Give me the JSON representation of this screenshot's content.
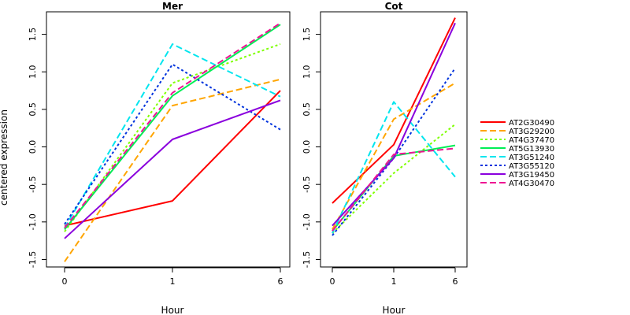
{
  "chart_data": [
    {
      "type": "line",
      "title": "Mer",
      "xlabel": "Hour",
      "ylabel": "centered expression",
      "categories": [
        "0",
        "1",
        "6"
      ],
      "ylim": [
        -1.6,
        1.8
      ],
      "yticks": [
        "-1.5",
        "-1.0",
        "-0.5",
        "0.0",
        "0.5",
        "1.0",
        "1.5"
      ],
      "grid": false,
      "series": [
        {
          "name": "AT2G30490",
          "color": "#ff0000",
          "dash": "solid",
          "values": [
            -1.05,
            -0.72,
            0.75
          ]
        },
        {
          "name": "AT3G29200",
          "color": "#ffa500",
          "dash": "longdash",
          "values": [
            -1.53,
            0.55,
            0.9
          ]
        },
        {
          "name": "AT4G37470",
          "color": "#7fff00",
          "dash": "dotted",
          "values": [
            -1.13,
            0.85,
            1.37
          ]
        },
        {
          "name": "AT5G13930",
          "color": "#00ee55",
          "dash": "solid",
          "values": [
            -1.1,
            0.68,
            1.63
          ]
        },
        {
          "name": "AT3G51240",
          "color": "#00e5ee",
          "dash": "longdash",
          "values": [
            -1.08,
            1.37,
            0.67
          ]
        },
        {
          "name": "AT3G55120",
          "color": "#0033dd",
          "dash": "dotted",
          "values": [
            -1.03,
            1.1,
            0.23
          ]
        },
        {
          "name": "AT3G19450",
          "color": "#8a00dd",
          "dash": "solid",
          "values": [
            -1.22,
            0.1,
            0.62
          ]
        },
        {
          "name": "AT4G30470",
          "color": "#ee1493",
          "dash": "longdash",
          "values": [
            -1.08,
            0.72,
            1.65
          ]
        }
      ]
    },
    {
      "type": "line",
      "title": "Cot",
      "xlabel": "Hour",
      "ylabel": "",
      "categories": [
        "0",
        "1",
        "6"
      ],
      "ylim": [
        -1.6,
        1.8
      ],
      "yticks": [
        "-1.5",
        "-1.0",
        "-0.5",
        "0.0",
        "0.5",
        "1.0",
        "1.5"
      ],
      "grid": false,
      "series": [
        {
          "name": "AT2G30490",
          "color": "#ff0000",
          "dash": "solid",
          "values": [
            -0.75,
            0.03,
            1.72
          ]
        },
        {
          "name": "AT3G29200",
          "color": "#ffa500",
          "dash": "longdash",
          "values": [
            -1.1,
            0.37,
            0.85
          ]
        },
        {
          "name": "AT4G37470",
          "color": "#7fff00",
          "dash": "dotted",
          "values": [
            -1.15,
            -0.35,
            0.3
          ]
        },
        {
          "name": "AT5G13930",
          "color": "#00ee55",
          "dash": "solid",
          "values": [
            -1.12,
            -0.12,
            0.02
          ]
        },
        {
          "name": "AT3G51240",
          "color": "#00e5ee",
          "dash": "longdash",
          "values": [
            -1.15,
            0.6,
            -0.4
          ]
        },
        {
          "name": "AT3G55120",
          "color": "#0033dd",
          "dash": "dotted",
          "values": [
            -1.18,
            -0.15,
            1.05
          ]
        },
        {
          "name": "AT3G19450",
          "color": "#8a00dd",
          "dash": "solid",
          "values": [
            -1.05,
            -0.15,
            1.65
          ]
        },
        {
          "name": "AT4G30470",
          "color": "#ee1493",
          "dash": "longdash",
          "values": [
            -1.12,
            -0.1,
            -0.02
          ]
        }
      ]
    }
  ],
  "legend": {
    "placement": "right",
    "entries": [
      {
        "label": "AT2G30490",
        "color": "#ff0000",
        "dash": "solid"
      },
      {
        "label": "AT3G29200",
        "color": "#ffa500",
        "dash": "longdash"
      },
      {
        "label": "AT4G37470",
        "color": "#7fff00",
        "dash": "dotted"
      },
      {
        "label": "AT5G13930",
        "color": "#00ee55",
        "dash": "solid"
      },
      {
        "label": "AT3G51240",
        "color": "#00e5ee",
        "dash": "longdash"
      },
      {
        "label": "AT3G55120",
        "color": "#0033dd",
        "dash": "dotted"
      },
      {
        "label": "AT3G19450",
        "color": "#8a00dd",
        "dash": "solid"
      },
      {
        "label": "AT4G30470",
        "color": "#ee1493",
        "dash": "longdash"
      }
    ]
  }
}
